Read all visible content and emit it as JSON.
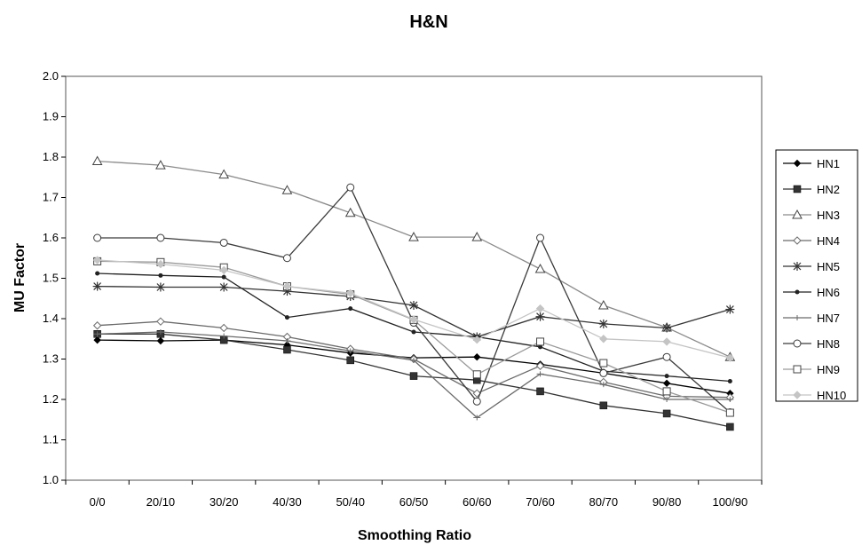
{
  "chart_data": {
    "type": "line",
    "title": "H&N",
    "xlabel": "Smoothing Ratio",
    "ylabel": "MU Factor",
    "categories": [
      "0/0",
      "20/10",
      "30/20",
      "40/30",
      "50/40",
      "60/50",
      "60/60",
      "70/60",
      "80/70",
      "90/80",
      "100/90"
    ],
    "ylim": [
      1.0,
      2.0
    ],
    "yticks": [
      "1.0",
      "1.1",
      "1.2",
      "1.3",
      "1.4",
      "1.5",
      "1.6",
      "1.7",
      "1.8",
      "1.9",
      "2.0"
    ],
    "grid": false,
    "legend_position": "right",
    "series": [
      {
        "name": "HN1",
        "color": "#000000",
        "marker": "diamond-filled",
        "values": [
          1.347,
          1.345,
          1.347,
          1.335,
          1.315,
          1.303,
          1.305,
          1.287,
          1.265,
          1.24,
          1.215
        ]
      },
      {
        "name": "HN2",
        "color": "#333333",
        "marker": "square-filled",
        "values": [
          1.362,
          1.362,
          1.347,
          1.323,
          1.297,
          1.258,
          1.248,
          1.22,
          1.185,
          1.165,
          1.132
        ]
      },
      {
        "name": "HN3",
        "color": "#8a8a8a",
        "marker": "triangle-open",
        "values": [
          1.79,
          1.78,
          1.757,
          1.718,
          1.662,
          1.602,
          1.602,
          1.523,
          1.433,
          1.378,
          1.305
        ]
      },
      {
        "name": "HN4",
        "color": "#6a6a6a",
        "marker": "diamond-open",
        "values": [
          1.383,
          1.393,
          1.377,
          1.355,
          1.325,
          1.3,
          1.215,
          1.283,
          1.243,
          1.208,
          1.205
        ]
      },
      {
        "name": "HN5",
        "color": "#333333",
        "marker": "asterisk",
        "values": [
          1.48,
          1.478,
          1.478,
          1.468,
          1.455,
          1.433,
          1.355,
          1.405,
          1.387,
          1.377,
          1.423
        ]
      },
      {
        "name": "HN6",
        "color": "#222222",
        "marker": "dot",
        "values": [
          1.512,
          1.507,
          1.503,
          1.403,
          1.425,
          1.367,
          1.355,
          1.33,
          1.27,
          1.258,
          1.245
        ]
      },
      {
        "name": "HN7",
        "color": "#6a6a6a",
        "marker": "plus",
        "values": [
          1.362,
          1.367,
          1.357,
          1.345,
          1.32,
          1.297,
          1.155,
          1.263,
          1.237,
          1.2,
          1.2
        ]
      },
      {
        "name": "HN8",
        "color": "#3a3a3a",
        "marker": "circle-open",
        "values": [
          1.6,
          1.6,
          1.588,
          1.55,
          1.725,
          1.39,
          1.195,
          1.6,
          1.265,
          1.305,
          1.168
        ]
      },
      {
        "name": "HN9",
        "color": "#9a9a9a",
        "marker": "square-open",
        "values": [
          1.542,
          1.54,
          1.527,
          1.48,
          1.46,
          1.397,
          1.262,
          1.343,
          1.29,
          1.22,
          1.167
        ]
      },
      {
        "name": "HN10",
        "color": "#c4c4c4",
        "marker": "diamond-light",
        "values": [
          1.545,
          1.535,
          1.52,
          1.48,
          1.463,
          1.398,
          1.348,
          1.425,
          1.35,
          1.343,
          1.303
        ]
      }
    ]
  }
}
